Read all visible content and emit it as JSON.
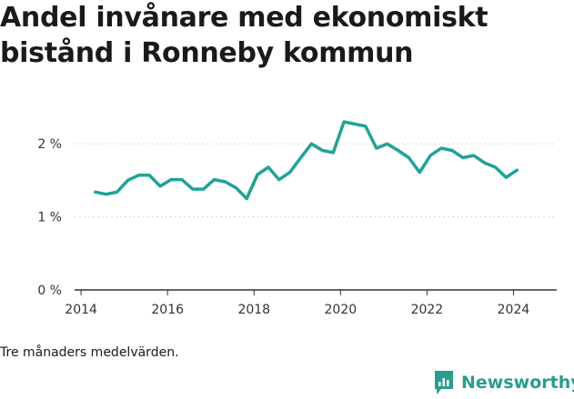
{
  "title": "Andel invånare med ekonomiskt bistånd i Ronneby kommun",
  "note": "Tre månaders medelvärden.",
  "brand": {
    "name": "Newsworthy",
    "icon": "bar-chart-logo-icon",
    "color": "#2a9d8f"
  },
  "chart_data": {
    "type": "line",
    "title": "Andel invånare med ekonomiskt bistånd i Ronneby kommun",
    "xlabel": "",
    "ylabel": "",
    "xlim": [
      2013.85,
      2025.0
    ],
    "ylim": [
      0,
      2.6
    ],
    "x_ticks": [
      2014,
      2016,
      2018,
      2020,
      2022,
      2024
    ],
    "y_ticks": [
      0,
      1,
      2
    ],
    "y_tick_labels": [
      "0 %",
      "1 %",
      "2 %"
    ],
    "grid": "horizontal",
    "legend": "none",
    "line_color": "#1fa396",
    "series": [
      {
        "x": [
          2014.33,
          2014.58,
          2014.83,
          2015.08,
          2015.33,
          2015.58,
          2015.83,
          2016.08,
          2016.33,
          2016.58,
          2016.83,
          2017.08,
          2017.33,
          2017.58,
          2017.83,
          2018.08,
          2018.33,
          2018.58,
          2018.83,
          2019.08,
          2019.33,
          2019.58,
          2019.83,
          2020.08,
          2020.33,
          2020.58,
          2020.83,
          2021.08,
          2021.33,
          2021.58,
          2021.83,
          2022.08,
          2022.33,
          2022.58,
          2022.83,
          2023.08,
          2023.33,
          2023.58,
          2023.83,
          2024.08
        ],
        "values": [
          1.34,
          1.31,
          1.34,
          1.5,
          1.57,
          1.57,
          1.42,
          1.51,
          1.51,
          1.38,
          1.38,
          1.51,
          1.48,
          1.4,
          1.25,
          1.58,
          1.68,
          1.51,
          1.61,
          1.81,
          2.0,
          1.91,
          1.88,
          2.3,
          2.27,
          2.24,
          1.94,
          2.0,
          1.91,
          1.81,
          1.61,
          1.84,
          1.94,
          1.91,
          1.81,
          1.84,
          1.74,
          1.68,
          1.54,
          1.64
        ]
      }
    ]
  }
}
